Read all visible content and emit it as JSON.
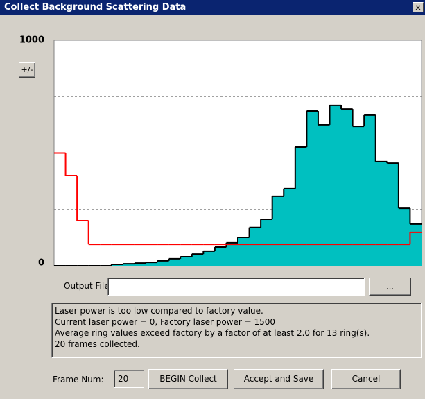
{
  "window": {
    "title": "Collect Background Scattering Data",
    "close": "×"
  },
  "toggle_button": "+/-",
  "chart_data": {
    "type": "step",
    "ylim": [
      0,
      1000
    ],
    "yticks": [
      0,
      1000
    ],
    "grid_lines": [
      250,
      500,
      750
    ],
    "series": [
      {
        "color": "#00c0c0",
        "fill": true,
        "values": [
          0,
          0,
          0,
          0,
          0,
          6,
          9,
          12,
          15,
          22,
          31,
          40,
          52,
          65,
          83,
          102,
          126,
          170,
          206,
          308,
          342,
          526,
          686,
          625,
          711,
          695,
          618,
          668,
          462,
          455,
          255,
          185
        ]
      },
      {
        "color": "#ff0000",
        "fill": false,
        "values": [
          500,
          400,
          200,
          95,
          95,
          95,
          95,
          95,
          95,
          95,
          95,
          95,
          95,
          95,
          95,
          95,
          95,
          95,
          95,
          95,
          95,
          95,
          95,
          95,
          95,
          95,
          95,
          95,
          95,
          95,
          95,
          148
        ]
      }
    ]
  },
  "output_file": {
    "label": "Output File:",
    "browse": "..."
  },
  "messages": [
    "Laser power is too low compared to factory value.",
    "Current laser power = 0,   Factory laser power = 1500",
    "Average ring values exceed factory by a factor of at least 2.0 for 13 ring(s).",
    "20 frames collected."
  ],
  "frame_num": {
    "label": "Frame Num:",
    "value": "20"
  },
  "buttons": [
    "BEGIN Collect",
    "Accept and Save",
    "Cancel"
  ]
}
